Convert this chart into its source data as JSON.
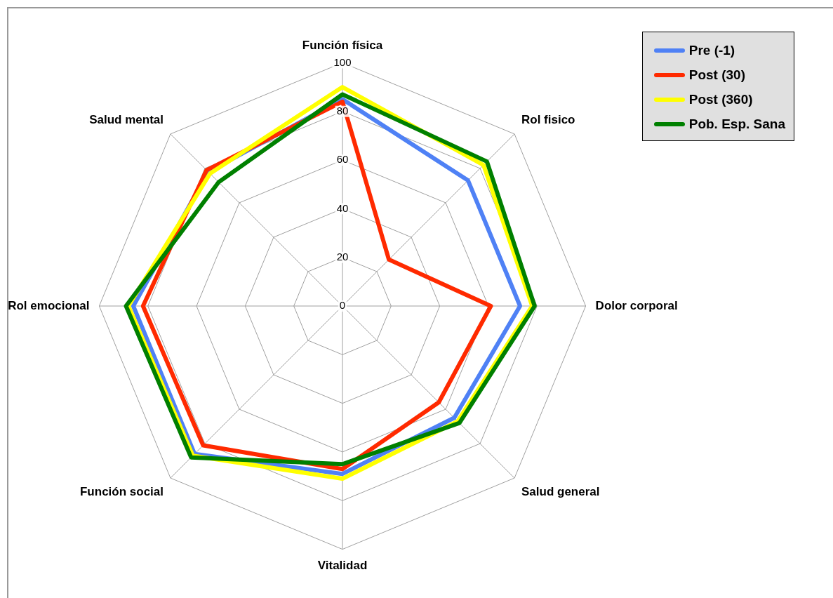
{
  "chart_data": {
    "type": "radar",
    "categories": [
      "Función física",
      "Rol fisico",
      "Dolor corporal",
      "Salud general",
      "Vitalidad",
      "Función social",
      "Rol emocional",
      "Salud mental"
    ],
    "series": [
      {
        "name": "Pre (-1)",
        "color": "#4f81f5",
        "values": [
          85,
          73,
          73,
          65,
          69,
          86,
          86,
          78
        ]
      },
      {
        "name": "Post (30)",
        "color": "#ff2a00",
        "values": [
          84,
          27,
          61,
          56,
          67,
          81,
          82,
          79
        ]
      },
      {
        "name": "Post (360)",
        "color": "#ffff00",
        "values": [
          90,
          82,
          78,
          67,
          71,
          87,
          88,
          77
        ]
      },
      {
        "name": "Pob. Esp. Sana",
        "color": "#008000",
        "values": [
          87,
          84,
          79,
          68,
          65,
          88,
          89,
          72
        ]
      }
    ],
    "ylim": [
      0,
      100
    ],
    "yticks": [
      0,
      20,
      40,
      60,
      80,
      100
    ],
    "grid": true,
    "legend": "top right",
    "marker": "none",
    "line_style": "solid"
  }
}
